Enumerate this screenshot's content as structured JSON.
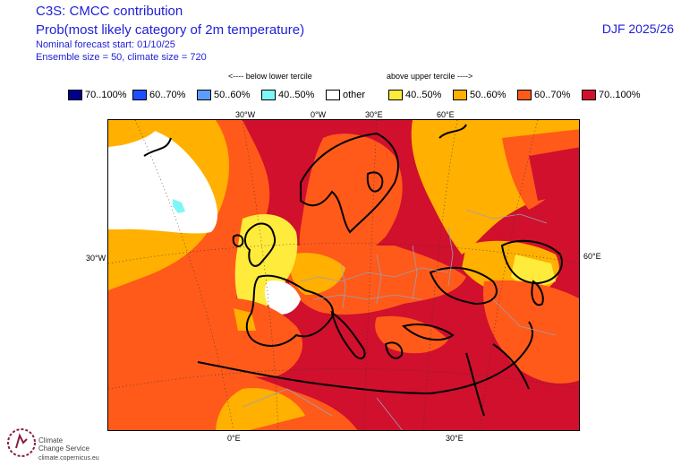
{
  "header": {
    "title": "C3S: CMCC contribution",
    "subtitle": "Prob(most likely category of 2m temperature)",
    "forecast_start": "Nominal forecast start: 01/10/25",
    "ensemble": "Ensemble size = 50, climate size = 720",
    "period": "DJF 2025/26"
  },
  "legend": {
    "below_label": "<---- below lower tercile",
    "above_label": "above upper tercile ---->",
    "items": [
      {
        "label": "70..100%",
        "color": "#00008b"
      },
      {
        "label": "60..70%",
        "color": "#1e4fff"
      },
      {
        "label": "50..60%",
        "color": "#5b9dff"
      },
      {
        "label": "40..50%",
        "color": "#7ff6f6"
      },
      {
        "label": "other",
        "color": "#ffffff"
      },
      {
        "label": "40..50%",
        "color": "#ffeb3b"
      },
      {
        "label": "50..60%",
        "color": "#ffb000"
      },
      {
        "label": "60..70%",
        "color": "#ff5a1a"
      },
      {
        "label": "70..100%",
        "color": "#d0102d"
      }
    ]
  },
  "axes": {
    "top": [
      "30°W",
      "0°W",
      "30°E",
      "60°E"
    ],
    "bottom": [
      "0°E",
      "30°E"
    ],
    "left": "30°W",
    "right": "60°E"
  },
  "logo": {
    "line1": "Climate",
    "line2": "Change Service",
    "url": "climate.copernicus.eu"
  }
}
